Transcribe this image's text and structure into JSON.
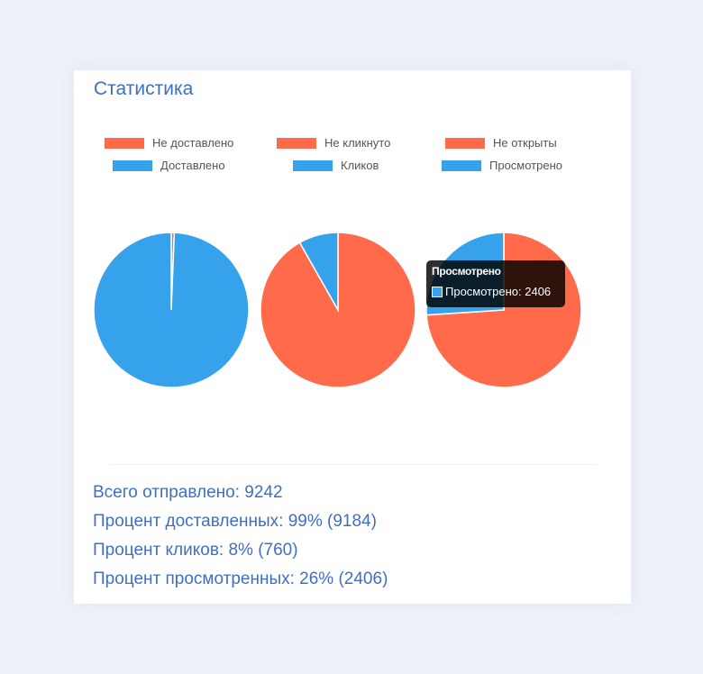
{
  "title": "Статистика",
  "colors": {
    "negative": "#ff6a4a",
    "positive": "#36a2eb",
    "slice_border": "#ffffff"
  },
  "legend": {
    "items": [
      {
        "label": "Не доставлено",
        "color": "#ff6a4a"
      },
      {
        "label": "Не кликнуто",
        "color": "#ff6a4a"
      },
      {
        "label": "Не открыты",
        "color": "#ff6a4a"
      },
      {
        "label": "Доставлено",
        "color": "#36a2eb"
      },
      {
        "label": "Кликов",
        "color": "#36a2eb"
      },
      {
        "label": "Просмотрено",
        "color": "#36a2eb"
      }
    ]
  },
  "chart_data": [
    {
      "type": "pie",
      "slices": [
        {
          "label": "Не доставлено",
          "value": 58,
          "color": "#ff6a4a"
        },
        {
          "label": "Доставлено",
          "value": 9184,
          "color": "#36a2eb"
        }
      ]
    },
    {
      "type": "pie",
      "slices": [
        {
          "label": "Не кликнуто",
          "value": 8482,
          "color": "#ff6a4a"
        },
        {
          "label": "Кликов",
          "value": 760,
          "color": "#36a2eb"
        }
      ]
    },
    {
      "type": "pie",
      "slices": [
        {
          "label": "Не открыты",
          "value": 6836,
          "color": "#ff6a4a"
        },
        {
          "label": "Просмотрено",
          "value": 2406,
          "color": "#36a2eb"
        }
      ]
    }
  ],
  "tooltip": {
    "title": "Просмотрено",
    "label": "Просмотрено: 2406",
    "color": "#36a2eb"
  },
  "stats": {
    "total": "Всего отправлено: 9242",
    "delivered": "Процент доставленных: 99% (9184)",
    "clicks": "Процент кликов: 8% (760)",
    "views": "Процент просмотренных: 26% (2406)"
  }
}
